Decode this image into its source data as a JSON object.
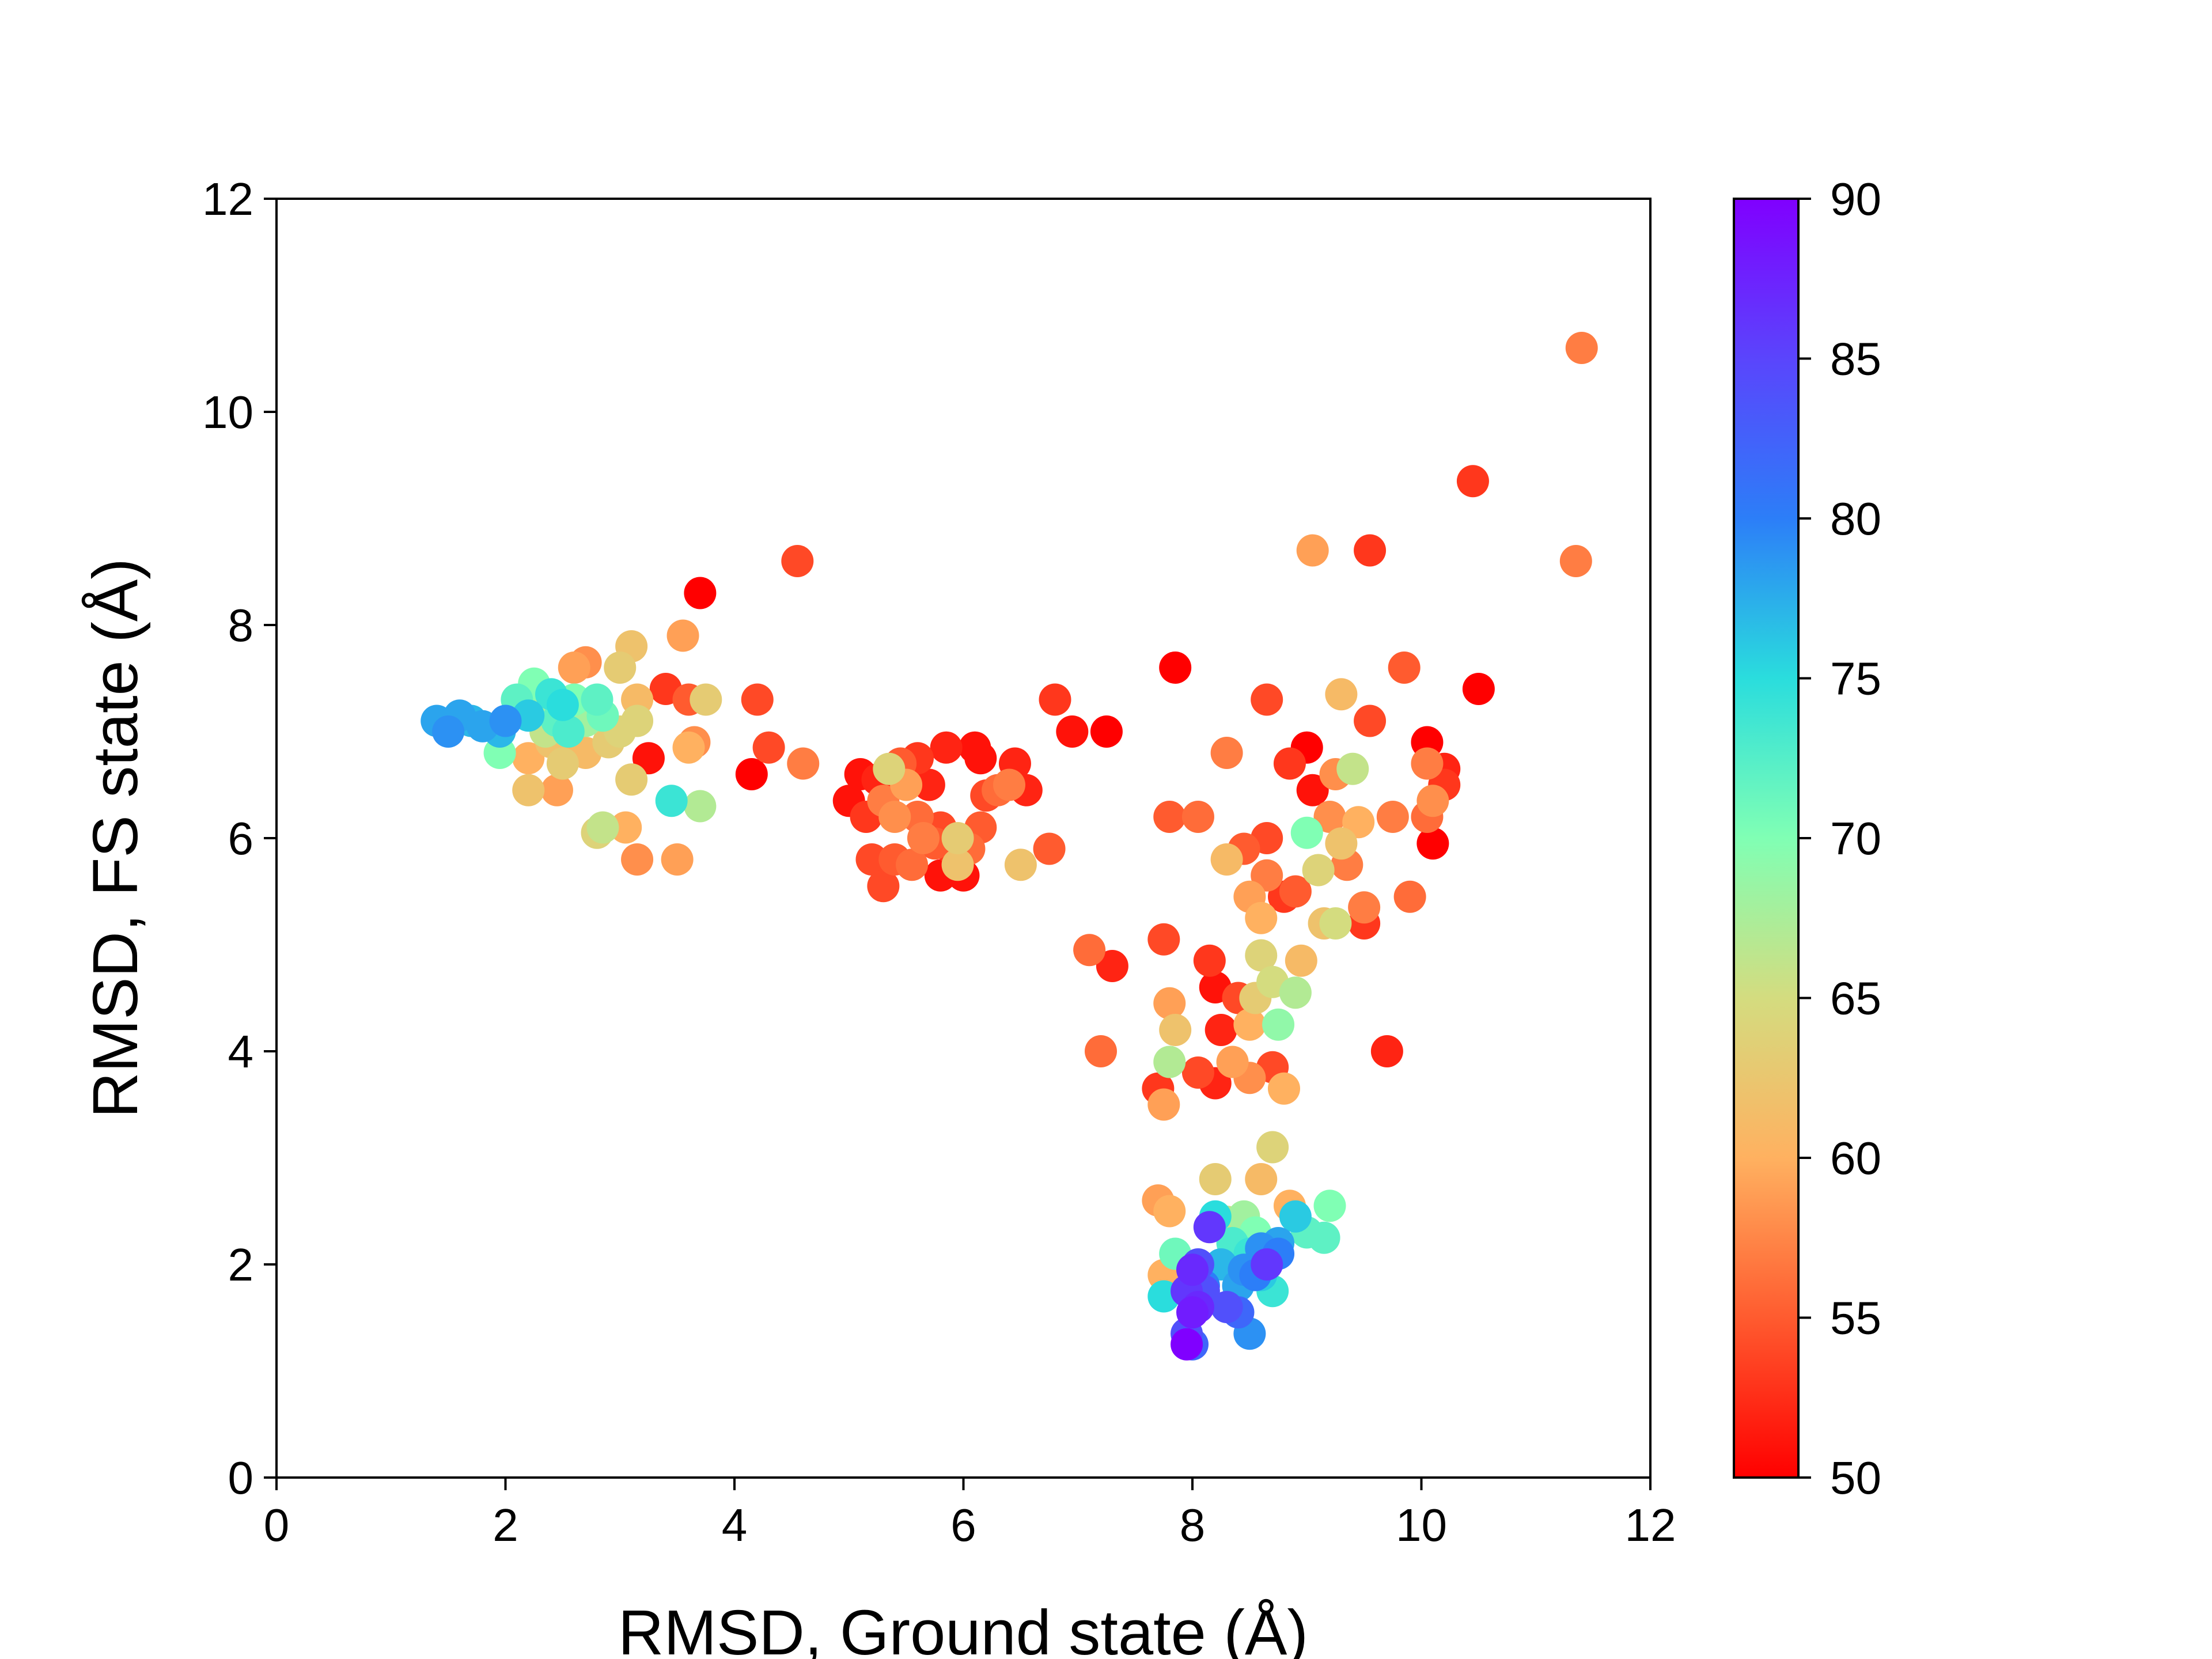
{
  "chart_data": {
    "type": "scatter",
    "xlabel": "RMSD, Ground state (Å)",
    "ylabel": "RMSD, FS state (Å)",
    "xlim": [
      0,
      12
    ],
    "ylim": [
      0,
      12
    ],
    "x_ticks": [
      "0",
      "2",
      "4",
      "6",
      "8",
      "10",
      "12"
    ],
    "y_ticks": [
      "0",
      "2",
      "4",
      "6",
      "8",
      "10",
      "12"
    ],
    "grid": false,
    "colormap": "rainbow",
    "colorbar": {
      "range": [
        50,
        90
      ],
      "ticks": [
        "50",
        "55",
        "60",
        "65",
        "70",
        "75",
        "80",
        "85",
        "90"
      ]
    },
    "points": [
      {
        "x": 1.4,
        "y": 7.1,
        "c": 78
      },
      {
        "x": 1.5,
        "y": 7.0,
        "c": 79
      },
      {
        "x": 1.6,
        "y": 7.15,
        "c": 78
      },
      {
        "x": 1.7,
        "y": 7.1,
        "c": 77
      },
      {
        "x": 1.8,
        "y": 7.05,
        "c": 78
      },
      {
        "x": 1.95,
        "y": 7.0,
        "c": 77
      },
      {
        "x": 2.0,
        "y": 7.1,
        "c": 79
      },
      {
        "x": 1.95,
        "y": 6.8,
        "c": 70
      },
      {
        "x": 2.1,
        "y": 7.3,
        "c": 72
      },
      {
        "x": 2.2,
        "y": 7.15,
        "c": 76
      },
      {
        "x": 2.25,
        "y": 7.45,
        "c": 70
      },
      {
        "x": 2.3,
        "y": 7.2,
        "c": 68
      },
      {
        "x": 2.35,
        "y": 7.0,
        "c": 66
      },
      {
        "x": 2.4,
        "y": 7.35,
        "c": 74
      },
      {
        "x": 2.45,
        "y": 7.1,
        "c": 72
      },
      {
        "x": 2.5,
        "y": 7.25,
        "c": 75
      },
      {
        "x": 2.55,
        "y": 7.0,
        "c": 73
      },
      {
        "x": 2.6,
        "y": 7.3,
        "c": 70
      },
      {
        "x": 2.7,
        "y": 7.1,
        "c": 68
      },
      {
        "x": 2.75,
        "y": 7.25,
        "c": 66
      },
      {
        "x": 2.8,
        "y": 7.3,
        "c": 72
      },
      {
        "x": 2.85,
        "y": 7.15,
        "c": 71
      },
      {
        "x": 2.2,
        "y": 6.75,
        "c": 60
      },
      {
        "x": 2.4,
        "y": 6.9,
        "c": 62
      },
      {
        "x": 2.5,
        "y": 6.7,
        "c": 63
      },
      {
        "x": 2.6,
        "y": 6.85,
        "c": 60
      },
      {
        "x": 2.7,
        "y": 6.8,
        "c": 61
      },
      {
        "x": 2.9,
        "y": 6.9,
        "c": 63
      },
      {
        "x": 3.0,
        "y": 7.0,
        "c": 64
      },
      {
        "x": 2.2,
        "y": 6.45,
        "c": 62
      },
      {
        "x": 2.45,
        "y": 6.45,
        "c": 59
      },
      {
        "x": 2.6,
        "y": 7.6,
        "c": 59
      },
      {
        "x": 2.7,
        "y": 7.65,
        "c": 58
      },
      {
        "x": 3.0,
        "y": 7.6,
        "c": 63
      },
      {
        "x": 3.1,
        "y": 7.8,
        "c": 62
      },
      {
        "x": 3.15,
        "y": 7.3,
        "c": 61
      },
      {
        "x": 3.15,
        "y": 7.1,
        "c": 64
      },
      {
        "x": 3.1,
        "y": 6.55,
        "c": 63
      },
      {
        "x": 3.05,
        "y": 6.1,
        "c": 60
      },
      {
        "x": 2.85,
        "y": 6.1,
        "c": 66
      },
      {
        "x": 2.8,
        "y": 6.05,
        "c": 64
      },
      {
        "x": 3.15,
        "y": 5.8,
        "c": 58
      },
      {
        "x": 3.5,
        "y": 5.8,
        "c": 59
      },
      {
        "x": 3.25,
        "y": 6.75,
        "c": 51
      },
      {
        "x": 3.4,
        "y": 7.4,
        "c": 53
      },
      {
        "x": 3.55,
        "y": 7.9,
        "c": 59
      },
      {
        "x": 3.6,
        "y": 7.3,
        "c": 55
      },
      {
        "x": 3.65,
        "y": 6.9,
        "c": 58
      },
      {
        "x": 3.6,
        "y": 6.85,
        "c": 60
      },
      {
        "x": 3.45,
        "y": 6.35,
        "c": 74
      },
      {
        "x": 3.7,
        "y": 6.3,
        "c": 67
      },
      {
        "x": 3.7,
        "y": 8.3,
        "c": 50
      },
      {
        "x": 3.75,
        "y": 7.3,
        "c": 63
      },
      {
        "x": 4.15,
        "y": 6.6,
        "c": 50
      },
      {
        "x": 4.2,
        "y": 7.3,
        "c": 54
      },
      {
        "x": 4.3,
        "y": 6.85,
        "c": 54
      },
      {
        "x": 4.55,
        "y": 8.6,
        "c": 54
      },
      {
        "x": 4.6,
        "y": 6.7,
        "c": 57
      },
      {
        "x": 5.0,
        "y": 6.35,
        "c": 51
      },
      {
        "x": 5.1,
        "y": 6.6,
        "c": 51
      },
      {
        "x": 5.15,
        "y": 6.2,
        "c": 53
      },
      {
        "x": 5.2,
        "y": 5.8,
        "c": 54
      },
      {
        "x": 5.25,
        "y": 6.55,
        "c": 52
      },
      {
        "x": 5.3,
        "y": 5.55,
        "c": 54
      },
      {
        "x": 5.3,
        "y": 6.35,
        "c": 57
      },
      {
        "x": 5.35,
        "y": 6.65,
        "c": 64
      },
      {
        "x": 5.4,
        "y": 6.2,
        "c": 58
      },
      {
        "x": 5.4,
        "y": 5.8,
        "c": 55
      },
      {
        "x": 5.45,
        "y": 6.7,
        "c": 55
      },
      {
        "x": 5.5,
        "y": 6.5,
        "c": 59
      },
      {
        "x": 5.55,
        "y": 5.75,
        "c": 56
      },
      {
        "x": 5.6,
        "y": 6.75,
        "c": 53
      },
      {
        "x": 5.6,
        "y": 6.2,
        "c": 56
      },
      {
        "x": 5.65,
        "y": 6.0,
        "c": 57
      },
      {
        "x": 5.7,
        "y": 6.5,
        "c": 52
      },
      {
        "x": 5.75,
        "y": 5.95,
        "c": 55
      },
      {
        "x": 5.8,
        "y": 5.65,
        "c": 51
      },
      {
        "x": 5.8,
        "y": 6.1,
        "c": 54
      },
      {
        "x": 5.85,
        "y": 6.85,
        "c": 52
      },
      {
        "x": 5.9,
        "y": 5.9,
        "c": 53
      },
      {
        "x": 5.95,
        "y": 6.0,
        "c": 63
      },
      {
        "x": 5.95,
        "y": 5.75,
        "c": 62
      },
      {
        "x": 6.0,
        "y": 5.65,
        "c": 51
      },
      {
        "x": 6.05,
        "y": 5.9,
        "c": 56
      },
      {
        "x": 6.1,
        "y": 6.85,
        "c": 51
      },
      {
        "x": 6.15,
        "y": 6.75,
        "c": 51
      },
      {
        "x": 6.15,
        "y": 6.1,
        "c": 55
      },
      {
        "x": 6.2,
        "y": 6.4,
        "c": 54
      },
      {
        "x": 6.3,
        "y": 6.45,
        "c": 56
      },
      {
        "x": 6.4,
        "y": 6.5,
        "c": 57
      },
      {
        "x": 6.45,
        "y": 6.7,
        "c": 52
      },
      {
        "x": 6.5,
        "y": 5.75,
        "c": 62
      },
      {
        "x": 6.55,
        "y": 6.45,
        "c": 52
      },
      {
        "x": 6.75,
        "y": 5.9,
        "c": 55
      },
      {
        "x": 6.8,
        "y": 7.3,
        "c": 53
      },
      {
        "x": 6.95,
        "y": 7.0,
        "c": 51
      },
      {
        "x": 7.1,
        "y": 4.95,
        "c": 56
      },
      {
        "x": 7.2,
        "y": 4.0,
        "c": 56
      },
      {
        "x": 7.25,
        "y": 7.0,
        "c": 50
      },
      {
        "x": 7.3,
        "y": 4.8,
        "c": 52
      },
      {
        "x": 7.7,
        "y": 3.65,
        "c": 53
      },
      {
        "x": 7.75,
        "y": 5.05,
        "c": 54
      },
      {
        "x": 7.75,
        "y": 3.5,
        "c": 59
      },
      {
        "x": 7.8,
        "y": 4.45,
        "c": 59
      },
      {
        "x": 7.8,
        "y": 3.9,
        "c": 67
      },
      {
        "x": 7.8,
        "y": 6.2,
        "c": 55
      },
      {
        "x": 7.85,
        "y": 4.2,
        "c": 62
      },
      {
        "x": 7.85,
        "y": 7.6,
        "c": 50
      },
      {
        "x": 8.05,
        "y": 6.2,
        "c": 56
      },
      {
        "x": 8.05,
        "y": 3.8,
        "c": 54
      },
      {
        "x": 8.15,
        "y": 4.85,
        "c": 53
      },
      {
        "x": 8.2,
        "y": 4.6,
        "c": 51
      },
      {
        "x": 8.2,
        "y": 3.7,
        "c": 52
      },
      {
        "x": 8.25,
        "y": 4.2,
        "c": 52
      },
      {
        "x": 8.3,
        "y": 5.8,
        "c": 61
      },
      {
        "x": 8.3,
        "y": 6.8,
        "c": 57
      },
      {
        "x": 8.35,
        "y": 3.9,
        "c": 59
      },
      {
        "x": 8.4,
        "y": 4.5,
        "c": 54
      },
      {
        "x": 8.45,
        "y": 5.9,
        "c": 55
      },
      {
        "x": 8.5,
        "y": 5.45,
        "c": 59
      },
      {
        "x": 8.5,
        "y": 4.25,
        "c": 60
      },
      {
        "x": 8.5,
        "y": 3.75,
        "c": 58
      },
      {
        "x": 8.55,
        "y": 4.5,
        "c": 63
      },
      {
        "x": 8.6,
        "y": 4.9,
        "c": 64
      },
      {
        "x": 8.6,
        "y": 5.25,
        "c": 60
      },
      {
        "x": 8.65,
        "y": 6.0,
        "c": 54
      },
      {
        "x": 8.65,
        "y": 5.65,
        "c": 57
      },
      {
        "x": 8.65,
        "y": 7.3,
        "c": 54
      },
      {
        "x": 8.7,
        "y": 4.65,
        "c": 65
      },
      {
        "x": 8.7,
        "y": 3.85,
        "c": 54
      },
      {
        "x": 8.75,
        "y": 4.25,
        "c": 69
      },
      {
        "x": 8.8,
        "y": 3.65,
        "c": 60
      },
      {
        "x": 8.8,
        "y": 5.45,
        "c": 53
      },
      {
        "x": 8.85,
        "y": 6.7,
        "c": 53
      },
      {
        "x": 8.9,
        "y": 4.55,
        "c": 67
      },
      {
        "x": 8.9,
        "y": 5.5,
        "c": 55
      },
      {
        "x": 8.95,
        "y": 4.85,
        "c": 61
      },
      {
        "x": 9.0,
        "y": 6.05,
        "c": 70
      },
      {
        "x": 9.0,
        "y": 6.85,
        "c": 50
      },
      {
        "x": 9.05,
        "y": 8.7,
        "c": 59
      },
      {
        "x": 9.05,
        "y": 6.45,
        "c": 51
      },
      {
        "x": 9.1,
        "y": 5.7,
        "c": 64
      },
      {
        "x": 9.15,
        "y": 5.2,
        "c": 62
      },
      {
        "x": 9.2,
        "y": 6.2,
        "c": 58
      },
      {
        "x": 9.25,
        "y": 5.2,
        "c": 65
      },
      {
        "x": 9.25,
        "y": 6.6,
        "c": 58
      },
      {
        "x": 9.3,
        "y": 7.35,
        "c": 61
      },
      {
        "x": 9.3,
        "y": 5.95,
        "c": 62
      },
      {
        "x": 9.35,
        "y": 5.75,
        "c": 57
      },
      {
        "x": 9.4,
        "y": 6.65,
        "c": 66
      },
      {
        "x": 9.45,
        "y": 6.15,
        "c": 60
      },
      {
        "x": 9.5,
        "y": 5.35,
        "c": 57
      },
      {
        "x": 9.5,
        "y": 5.2,
        "c": 53
      },
      {
        "x": 9.55,
        "y": 7.1,
        "c": 54
      },
      {
        "x": 9.55,
        "y": 8.7,
        "c": 53
      },
      {
        "x": 9.75,
        "y": 6.2,
        "c": 57
      },
      {
        "x": 9.7,
        "y": 4.0,
        "c": 52
      },
      {
        "x": 9.85,
        "y": 7.6,
        "c": 55
      },
      {
        "x": 9.9,
        "y": 5.45,
        "c": 56
      },
      {
        "x": 10.05,
        "y": 6.9,
        "c": 50
      },
      {
        "x": 10.05,
        "y": 6.7,
        "c": 57
      },
      {
        "x": 10.05,
        "y": 6.2,
        "c": 56
      },
      {
        "x": 10.1,
        "y": 5.95,
        "c": 50
      },
      {
        "x": 10.1,
        "y": 6.35,
        "c": 58
      },
      {
        "x": 10.2,
        "y": 6.65,
        "c": 52
      },
      {
        "x": 10.2,
        "y": 6.5,
        "c": 53
      },
      {
        "x": 10.45,
        "y": 9.35,
        "c": 53
      },
      {
        "x": 10.5,
        "y": 7.4,
        "c": 50
      },
      {
        "x": 11.35,
        "y": 8.6,
        "c": 57
      },
      {
        "x": 11.4,
        "y": 10.6,
        "c": 57
      },
      {
        "x": 7.7,
        "y": 2.6,
        "c": 59
      },
      {
        "x": 7.8,
        "y": 2.5,
        "c": 60
      },
      {
        "x": 7.75,
        "y": 1.9,
        "c": 60
      },
      {
        "x": 7.75,
        "y": 1.7,
        "c": 75
      },
      {
        "x": 7.85,
        "y": 2.1,
        "c": 71
      },
      {
        "x": 8.2,
        "y": 2.8,
        "c": 63
      },
      {
        "x": 8.6,
        "y": 2.8,
        "c": 61
      },
      {
        "x": 8.7,
        "y": 3.1,
        "c": 64
      },
      {
        "x": 8.85,
        "y": 2.55,
        "c": 60
      },
      {
        "x": 8.9,
        "y": 2.45,
        "c": 76
      },
      {
        "x": 9.0,
        "y": 2.3,
        "c": 72
      },
      {
        "x": 9.15,
        "y": 2.25,
        "c": 72
      },
      {
        "x": 9.2,
        "y": 2.55,
        "c": 70
      },
      {
        "x": 8.75,
        "y": 2.2,
        "c": 78
      },
      {
        "x": 8.65,
        "y": 2.0,
        "c": 80
      },
      {
        "x": 8.6,
        "y": 1.9,
        "c": 76
      },
      {
        "x": 8.55,
        "y": 2.3,
        "c": 70
      },
      {
        "x": 8.5,
        "y": 2.1,
        "c": 74
      },
      {
        "x": 8.45,
        "y": 2.45,
        "c": 68
      },
      {
        "x": 8.4,
        "y": 1.8,
        "c": 78
      },
      {
        "x": 8.35,
        "y": 2.2,
        "c": 73
      },
      {
        "x": 8.3,
        "y": 2.4,
        "c": 66
      },
      {
        "x": 8.25,
        "y": 2.0,
        "c": 77
      },
      {
        "x": 8.2,
        "y": 2.45,
        "c": 75
      },
      {
        "x": 8.15,
        "y": 2.35,
        "c": 86
      },
      {
        "x": 8.1,
        "y": 1.8,
        "c": 80
      },
      {
        "x": 8.05,
        "y": 2.0,
        "c": 84
      },
      {
        "x": 8.0,
        "y": 1.95,
        "c": 87
      },
      {
        "x": 7.95,
        "y": 1.75,
        "c": 86
      },
      {
        "x": 8.0,
        "y": 1.55,
        "c": 88
      },
      {
        "x": 8.05,
        "y": 1.6,
        "c": 87
      },
      {
        "x": 8.1,
        "y": 1.75,
        "c": 84
      },
      {
        "x": 7.95,
        "y": 1.35,
        "c": 84
      },
      {
        "x": 8.0,
        "y": 1.25,
        "c": 82
      },
      {
        "x": 7.95,
        "y": 1.25,
        "c": 90
      },
      {
        "x": 8.3,
        "y": 1.6,
        "c": 84
      },
      {
        "x": 8.4,
        "y": 1.55,
        "c": 82
      },
      {
        "x": 8.5,
        "y": 1.35,
        "c": 79
      },
      {
        "x": 8.55,
        "y": 1.9,
        "c": 80
      },
      {
        "x": 8.7,
        "y": 1.75,
        "c": 74
      },
      {
        "x": 8.65,
        "y": 2.0,
        "c": 86
      },
      {
        "x": 8.75,
        "y": 2.1,
        "c": 80
      },
      {
        "x": 8.6,
        "y": 2.15,
        "c": 79
      },
      {
        "x": 8.45,
        "y": 1.95,
        "c": 79
      }
    ]
  }
}
